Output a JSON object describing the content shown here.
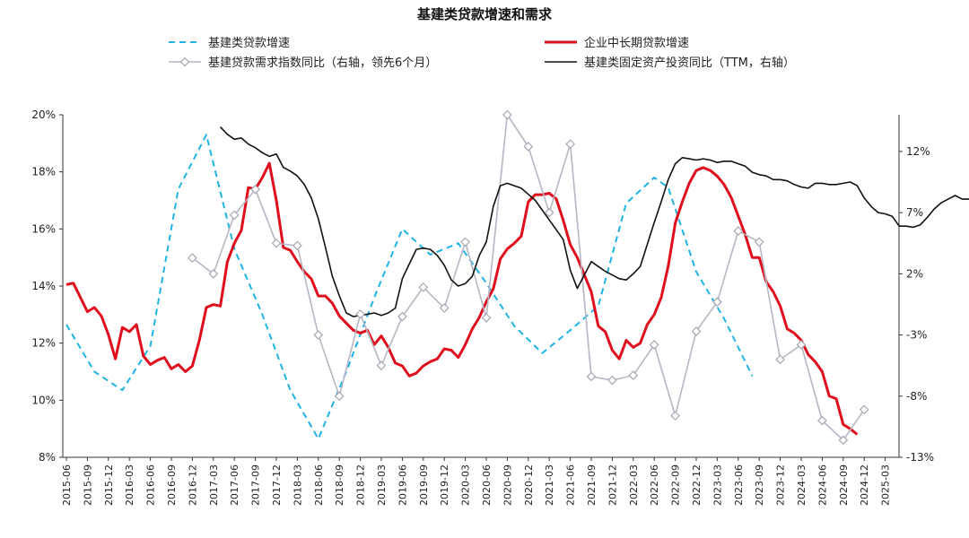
{
  "chart_data": {
    "type": "line",
    "title": "基建类贷款增速和需求",
    "categories": [
      "2015-06",
      "2015-09",
      "2015-12",
      "2016-03",
      "2016-06",
      "2016-09",
      "2016-12",
      "2017-03",
      "2017-06",
      "2017-09",
      "2017-12",
      "2018-03",
      "2018-06",
      "2018-09",
      "2018-12",
      "2019-03",
      "2019-06",
      "2019-09",
      "2019-12",
      "2020-03",
      "2020-06",
      "2020-09",
      "2020-12",
      "2021-03",
      "2021-06",
      "2021-09",
      "2021-12",
      "2022-03",
      "2022-06",
      "2022-09",
      "2022-12",
      "2023-03",
      "2023-06",
      "2023-09",
      "2023-12",
      "2024-03",
      "2024-06",
      "2024-09",
      "2024-12",
      "2025-03"
    ],
    "y_left": {
      "ylim": [
        8,
        20
      ],
      "ticks": [
        "8%",
        "10%",
        "12%",
        "14%",
        "16%",
        "18%",
        "20%"
      ]
    },
    "y_right": {
      "ylim": [
        -13,
        15
      ],
      "ticks": [
        "-13%",
        "-8%",
        "-3%",
        "2%",
        "7%",
        "12%"
      ]
    },
    "legend": [
      {
        "label": "基建类贷款增速",
        "color": "#1eb4e6",
        "style": "dashed"
      },
      {
        "label": "企业中长期贷款增速",
        "color": "#e00e1c",
        "style": "solid-thick"
      },
      {
        "label": "基建贷款需求指数同比（右轴，领先6个月）",
        "color": "#b6b6c4",
        "style": "marker"
      },
      {
        "label": "基建类固定资产投资同比（TTM，右轴）",
        "color": "#111111",
        "style": "solid"
      }
    ],
    "series": [
      {
        "name": "基建类贷款增速",
        "axis": "left",
        "color": "#1eb4e6",
        "points": [
          [
            0,
            12.65
          ],
          [
            4,
            11.0
          ],
          [
            8,
            10.35
          ],
          [
            12,
            11.9
          ],
          [
            16,
            17.4
          ],
          [
            20,
            19.3
          ],
          [
            24,
            15.3
          ],
          [
            28,
            13.0
          ],
          [
            32,
            10.35
          ],
          [
            36,
            8.65
          ],
          [
            40,
            11.0
          ],
          [
            44,
            13.6
          ],
          [
            48,
            16.0
          ],
          [
            52,
            15.1
          ],
          [
            56,
            15.5
          ],
          [
            60,
            14.1
          ],
          [
            64,
            12.6
          ],
          [
            68,
            11.65
          ],
          [
            72,
            12.45
          ],
          [
            76,
            13.3
          ],
          [
            80,
            16.9
          ],
          [
            84,
            17.8
          ],
          [
            86,
            17.45
          ],
          [
            90,
            14.5
          ],
          [
            94,
            12.85
          ],
          [
            98,
            10.85
          ]
        ]
      },
      {
        "name": "企业中长期贷款增速",
        "axis": "left",
        "color": "#e00e1c",
        "points": [
          [
            0,
            14.05
          ],
          [
            1,
            14.1
          ],
          [
            2,
            13.6
          ],
          [
            3,
            13.1
          ],
          [
            4,
            13.25
          ],
          [
            5,
            12.95
          ],
          [
            6,
            12.3
          ],
          [
            7,
            11.45
          ],
          [
            8,
            12.55
          ],
          [
            9,
            12.4
          ],
          [
            10,
            12.65
          ],
          [
            11,
            11.55
          ],
          [
            12,
            11.25
          ],
          [
            13,
            11.4
          ],
          [
            14,
            11.5
          ],
          [
            15,
            11.1
          ],
          [
            16,
            11.25
          ],
          [
            17,
            11.0
          ],
          [
            18,
            11.2
          ],
          [
            19,
            12.1
          ],
          [
            20,
            13.25
          ],
          [
            21,
            13.35
          ],
          [
            22,
            13.3
          ],
          [
            23,
            14.85
          ],
          [
            24,
            15.5
          ],
          [
            25,
            15.95
          ],
          [
            26,
            17.45
          ],
          [
            27,
            17.4
          ],
          [
            28,
            17.8
          ],
          [
            29,
            18.3
          ],
          [
            30,
            17.0
          ],
          [
            31,
            15.35
          ],
          [
            32,
            15.25
          ],
          [
            33,
            14.85
          ],
          [
            34,
            14.5
          ],
          [
            35,
            14.25
          ],
          [
            36,
            13.65
          ],
          [
            37,
            13.65
          ],
          [
            38,
            13.4
          ],
          [
            39,
            12.95
          ],
          [
            40,
            12.7
          ],
          [
            41,
            12.45
          ],
          [
            42,
            12.35
          ],
          [
            43,
            12.45
          ],
          [
            44,
            11.95
          ],
          [
            45,
            12.25
          ],
          [
            46,
            11.85
          ],
          [
            47,
            11.3
          ],
          [
            48,
            11.2
          ],
          [
            49,
            10.85
          ],
          [
            50,
            10.95
          ],
          [
            51,
            11.2
          ],
          [
            52,
            11.35
          ],
          [
            53,
            11.45
          ],
          [
            54,
            11.8
          ],
          [
            55,
            11.75
          ],
          [
            56,
            11.5
          ],
          [
            57,
            11.95
          ],
          [
            58,
            12.5
          ],
          [
            59,
            12.9
          ],
          [
            60,
            13.45
          ],
          [
            61,
            13.9
          ],
          [
            62,
            14.95
          ],
          [
            63,
            15.3
          ],
          [
            64,
            15.5
          ],
          [
            65,
            15.75
          ],
          [
            66,
            16.95
          ],
          [
            67,
            17.2
          ],
          [
            68,
            17.2
          ],
          [
            69,
            17.25
          ],
          [
            70,
            17.05
          ],
          [
            71,
            16.3
          ],
          [
            72,
            15.45
          ],
          [
            73,
            15.0
          ],
          [
            74,
            14.4
          ],
          [
            75,
            13.8
          ],
          [
            76,
            12.6
          ],
          [
            77,
            12.4
          ],
          [
            78,
            11.75
          ],
          [
            79,
            11.45
          ],
          [
            80,
            12.1
          ],
          [
            81,
            11.85
          ],
          [
            82,
            12.0
          ],
          [
            83,
            12.65
          ],
          [
            84,
            13.0
          ],
          [
            85,
            13.6
          ],
          [
            86,
            14.7
          ],
          [
            87,
            16.2
          ],
          [
            88,
            16.95
          ],
          [
            89,
            17.6
          ],
          [
            90,
            18.05
          ],
          [
            91,
            18.15
          ],
          [
            92,
            18.05
          ],
          [
            93,
            17.85
          ],
          [
            94,
            17.55
          ],
          [
            95,
            17.1
          ],
          [
            96,
            16.45
          ],
          [
            97,
            15.8
          ],
          [
            98,
            15.0
          ],
          [
            99,
            15.0
          ],
          [
            100,
            14.15
          ],
          [
            101,
            13.8
          ],
          [
            102,
            13.3
          ],
          [
            103,
            12.5
          ],
          [
            104,
            12.35
          ],
          [
            105,
            12.1
          ],
          [
            106,
            11.6
          ],
          [
            107,
            11.35
          ],
          [
            108,
            11.0
          ],
          [
            109,
            10.15
          ],
          [
            110,
            10.05
          ],
          [
            111,
            9.15
          ],
          [
            112,
            9.0
          ],
          [
            113,
            8.8
          ]
        ]
      },
      {
        "name": "基建贷款需求指数同比（右轴，领先6个月）",
        "axis": "right",
        "color": "#b6b6c4",
        "points": [
          [
            6,
            3.3
          ],
          [
            7,
            2.0
          ],
          [
            8,
            6.8
          ],
          [
            9,
            8.9
          ],
          [
            10,
            4.5
          ],
          [
            11,
            4.3
          ],
          [
            12,
            -3.0
          ],
          [
            13,
            -8.0
          ],
          [
            14,
            -1.3
          ],
          [
            15,
            -5.5
          ],
          [
            16,
            -1.5
          ],
          [
            17,
            0.9
          ],
          [
            18,
            -0.8
          ],
          [
            19,
            4.6
          ],
          [
            20,
            -1.6
          ],
          [
            21,
            15.0
          ],
          [
            22,
            12.4
          ],
          [
            23,
            7.0
          ],
          [
            24,
            12.6
          ],
          [
            25,
            -6.4
          ],
          [
            26,
            -6.7
          ],
          [
            27,
            -6.3
          ],
          [
            28,
            -3.8
          ],
          [
            29,
            -9.6
          ],
          [
            30,
            -2.7
          ],
          [
            31,
            -0.3
          ],
          [
            32,
            5.5
          ],
          [
            33,
            4.6
          ],
          [
            34,
            -5.0
          ],
          [
            35,
            -3.8
          ],
          [
            36,
            -10.0
          ],
          [
            37,
            -11.6
          ],
          [
            38,
            -9.1
          ]
        ]
      },
      {
        "name": "基建类固定资产投资同比（TTM，右轴）",
        "axis": "right",
        "color": "#111111",
        "points": [
          [
            22,
            14.0
          ],
          [
            23,
            13.4
          ],
          [
            24,
            13.0
          ],
          [
            25,
            13.1
          ],
          [
            26,
            12.6
          ],
          [
            27,
            12.3
          ],
          [
            28,
            11.9
          ],
          [
            29,
            11.6
          ],
          [
            30,
            11.8
          ],
          [
            31,
            10.7
          ],
          [
            32,
            10.4
          ],
          [
            33,
            10.0
          ],
          [
            34,
            9.3
          ],
          [
            35,
            8.2
          ],
          [
            36,
            6.5
          ],
          [
            37,
            4.2
          ],
          [
            38,
            1.8
          ],
          [
            39,
            0.2
          ],
          [
            40,
            -1.2
          ],
          [
            41,
            -1.5
          ],
          [
            42,
            -1.4
          ],
          [
            43,
            -1.3
          ],
          [
            44,
            -1.2
          ],
          [
            45,
            -1.4
          ],
          [
            46,
            -1.2
          ],
          [
            47,
            -0.8
          ],
          [
            48,
            1.6
          ],
          [
            49,
            2.8
          ],
          [
            50,
            4.0
          ],
          [
            51,
            4.1
          ],
          [
            52,
            4.0
          ],
          [
            53,
            3.5
          ],
          [
            54,
            2.7
          ],
          [
            55,
            1.5
          ],
          [
            56,
            1.0
          ],
          [
            57,
            1.2
          ],
          [
            58,
            1.8
          ],
          [
            59,
            3.5
          ],
          [
            60,
            4.6
          ],
          [
            61,
            7.5
          ],
          [
            62,
            9.2
          ],
          [
            63,
            9.4
          ],
          [
            64,
            9.2
          ],
          [
            65,
            9.0
          ],
          [
            66,
            8.5
          ],
          [
            67,
            8.0
          ],
          [
            68,
            7.2
          ],
          [
            69,
            6.4
          ],
          [
            70,
            5.6
          ],
          [
            71,
            4.8
          ],
          [
            72,
            2.3
          ],
          [
            73,
            0.8
          ],
          [
            74,
            1.9
          ],
          [
            75,
            3.0
          ],
          [
            76,
            2.6
          ],
          [
            77,
            2.2
          ],
          [
            78,
            1.9
          ],
          [
            79,
            1.6
          ],
          [
            80,
            1.5
          ],
          [
            81,
            2.0
          ],
          [
            82,
            2.6
          ],
          [
            83,
            4.4
          ],
          [
            84,
            6.2
          ],
          [
            85,
            7.9
          ],
          [
            86,
            9.7
          ],
          [
            87,
            11.0
          ],
          [
            88,
            11.5
          ],
          [
            89,
            11.4
          ],
          [
            90,
            11.3
          ],
          [
            91,
            11.4
          ],
          [
            92,
            11.3
          ],
          [
            93,
            11.1
          ],
          [
            94,
            11.2
          ],
          [
            95,
            11.2
          ],
          [
            96,
            11.0
          ],
          [
            97,
            10.8
          ],
          [
            98,
            10.3
          ],
          [
            99,
            10.1
          ],
          [
            100,
            10.0
          ],
          [
            101,
            9.7
          ],
          [
            102,
            9.7
          ],
          [
            103,
            9.6
          ],
          [
            104,
            9.3
          ],
          [
            105,
            9.1
          ],
          [
            106,
            9.0
          ],
          [
            107,
            9.4
          ],
          [
            108,
            9.4
          ],
          [
            109,
            9.3
          ],
          [
            110,
            9.3
          ],
          [
            111,
            9.4
          ],
          [
            112,
            9.5
          ],
          [
            113,
            9.2
          ],
          [
            114,
            8.2
          ],
          [
            115,
            7.5
          ],
          [
            116,
            7.0
          ],
          [
            117,
            6.9
          ],
          [
            118,
            6.7
          ],
          [
            119,
            5.9
          ],
          [
            120,
            5.9
          ],
          [
            121,
            5.8
          ],
          [
            122,
            6.0
          ],
          [
            123,
            6.6
          ],
          [
            124,
            7.3
          ],
          [
            125,
            7.8
          ],
          [
            126,
            8.1
          ],
          [
            127,
            8.4
          ],
          [
            128,
            8.1
          ],
          [
            129,
            8.1
          ],
          [
            130,
            8.3
          ],
          [
            131,
            8.0
          ],
          [
            132,
            8.0
          ],
          [
            133,
            7.4
          ],
          [
            134,
            7.1
          ],
          [
            135,
            7.2
          ],
          [
            136,
            7.9
          ],
          [
            137,
            7.9
          ],
          [
            138,
            8.3
          ],
          [
            139,
            8.6
          ],
          [
            140,
            8.3
          ],
          [
            141,
            8.2
          ],
          [
            142,
            8.0
          ],
          [
            143,
            7.9
          ],
          [
            144,
            8.0
          ],
          [
            145,
            8.1
          ]
        ]
      }
    ]
  }
}
